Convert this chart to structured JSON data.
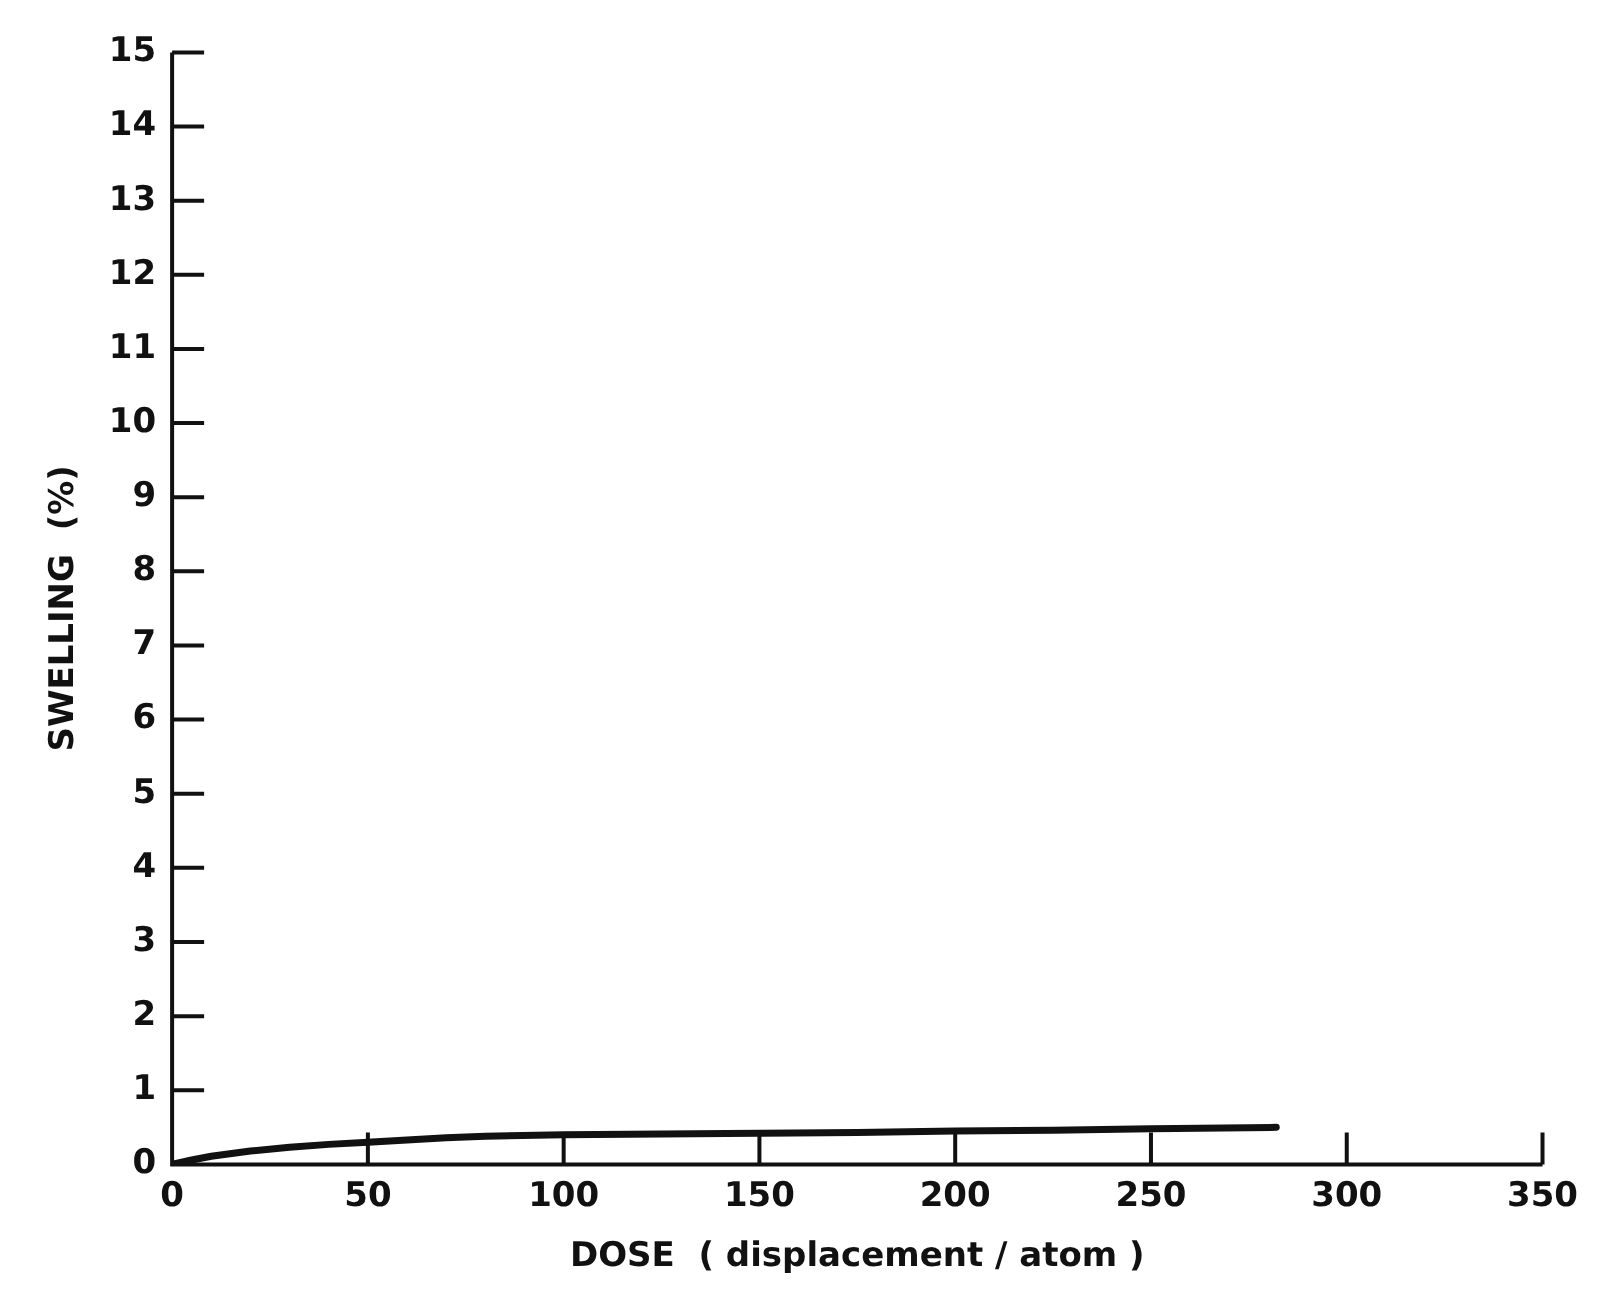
{
  "chart_data": {
    "type": "line",
    "xlabel": "DOSE  ( displacement / atom )",
    "ylabel": "SWELLING  (%)",
    "xlim": [
      0,
      350
    ],
    "xticks": [
      0,
      50,
      100,
      150,
      200,
      250,
      300,
      350
    ],
    "ylim": [
      0,
      15
    ],
    "yticks": [
      0,
      1,
      2,
      3,
      4,
      5,
      6,
      7,
      8,
      9,
      10,
      11,
      12,
      13,
      14,
      15
    ],
    "grid": false,
    "legend": false,
    "marker": "none",
    "line_style": "solid",
    "series": [
      {
        "color": "#111111",
        "x": [
          0,
          5,
          10,
          20,
          30,
          40,
          50,
          60,
          70,
          80,
          100,
          125,
          150,
          175,
          200,
          225,
          250,
          282
        ],
        "values": [
          0,
          0.06,
          0.11,
          0.18,
          0.23,
          0.27,
          0.3,
          0.33,
          0.36,
          0.38,
          0.4,
          0.41,
          0.42,
          0.43,
          0.45,
          0.46,
          0.48,
          0.5
        ]
      }
    ]
  }
}
